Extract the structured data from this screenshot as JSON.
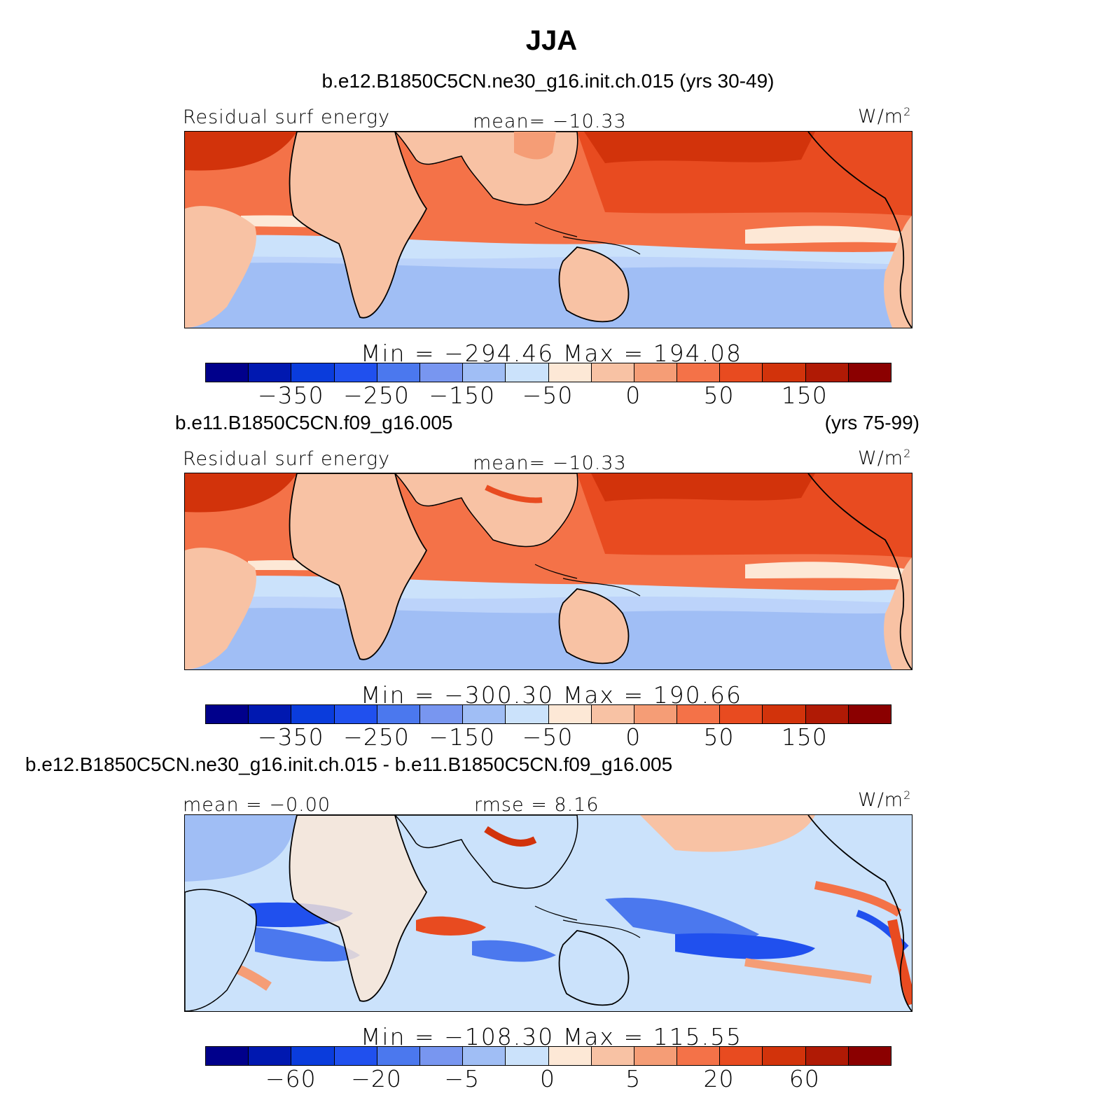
{
  "figure": {
    "title": "JJA",
    "units_prefix": "W/m",
    "units_exp": "2"
  },
  "colors": [
    "#00008b",
    "#0018b0",
    "#0a3cdc",
    "#2050ee",
    "#4b78ee",
    "#7896f0",
    "#a0bef5",
    "#cbe2fb",
    "#fde8d6",
    "#f8c2a4",
    "#f59d76",
    "#f47248",
    "#e84b20",
    "#d2330b",
    "#b01a05",
    "#8b0000"
  ],
  "panels": [
    {
      "case": "b.e12.B1850C5CN.ne30_g16.init.ch.015 (yrs 30-49)",
      "years": "",
      "left_label": "Residual surf energy",
      "center_label": "mean= −10.33",
      "minmax": "Min = −294.46 Max = 194.08",
      "tick_labels": [
        "−350",
        "−250",
        "−150",
        "−50",
        "0",
        "50",
        "150"
      ]
    },
    {
      "case": "b.e11.B1850C5CN.f09_g16.005",
      "years": "(yrs 75-99)",
      "left_label": "Residual surf energy",
      "center_label": "mean= −10.33",
      "minmax": "Min = −300.30 Max = 190.66",
      "tick_labels": [
        "−350",
        "−250",
        "−150",
        "−50",
        "0",
        "50",
        "150"
      ]
    },
    {
      "case": "b.e12.B1850C5CN.ne30_g16.init.ch.015 - b.e11.B1850C5CN.f09_g16.005",
      "years": "",
      "left_label": "mean =   −0.00",
      "center_label": "rmse =    8.16",
      "minmax": "Min = −108.30 Max = 115.55",
      "tick_labels": [
        "−60",
        "−20",
        "−5",
        "0",
        "5",
        "20",
        "60"
      ]
    }
  ]
}
